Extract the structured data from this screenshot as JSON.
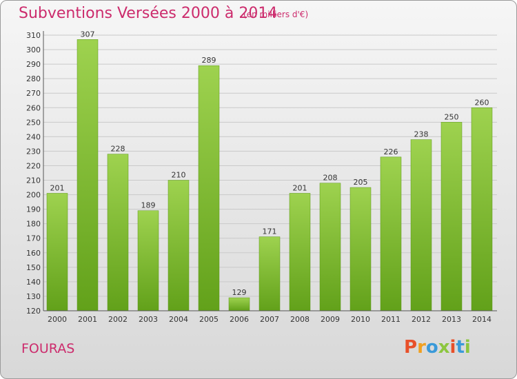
{
  "header": {
    "title": "Subventions Versées 2000 à 2014",
    "unit": "(en milliers d'€)"
  },
  "footer": {
    "town": "FOURAS",
    "logo_text": "Proxiti",
    "logo_colors": [
      "#e8502a",
      "#f0a020",
      "#3a9ad9",
      "#8cc63f",
      "#e8502a",
      "#3a9ad9",
      "#8cc63f"
    ]
  },
  "colors": {
    "title": "#cc2b6c",
    "bar_light": "#9ed24f",
    "bar_dark": "#62a11a",
    "grid": "#c9c9c9"
  },
  "chart_data": {
    "type": "bar",
    "categories": [
      "2000",
      "2001",
      "2002",
      "2003",
      "2004",
      "2005",
      "2006",
      "2007",
      "2008",
      "2009",
      "2010",
      "2011",
      "2012",
      "2013",
      "2014"
    ],
    "values": [
      201,
      307,
      228,
      189,
      210,
      289,
      129,
      171,
      201,
      208,
      205,
      226,
      238,
      250,
      260
    ],
    "ylim": [
      120,
      310
    ],
    "yticks": [
      120,
      130,
      140,
      150,
      160,
      170,
      180,
      190,
      200,
      210,
      220,
      230,
      240,
      250,
      260,
      270,
      280,
      290,
      300,
      310
    ],
    "grid": true,
    "title": "Subventions Versées 2000 à 2014",
    "xlabel": "",
    "ylabel": ""
  }
}
